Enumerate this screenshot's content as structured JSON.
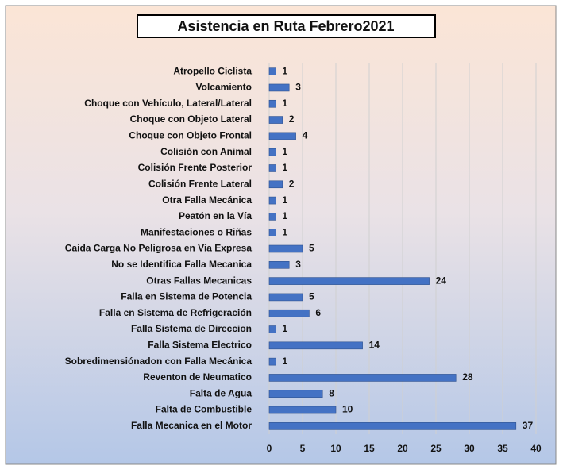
{
  "chart_data": {
    "type": "bar",
    "orientation": "horizontal",
    "title": "Asistencia en Ruta Febrero2021",
    "categories": [
      "Atropello Ciclista",
      "Volcamiento",
      "Choque con Vehículo, Lateral/Lateral",
      "Choque con Objeto Lateral",
      "Choque con Objeto Frontal",
      "Colisión con Animal",
      "Colisión Frente Posterior",
      "Colisión Frente Lateral",
      "Otra Falla Mecánica",
      "Peatón en la Vía",
      "Manifestaciones o Riñas",
      "Caida Carga No Peligrosa en Via Expresa",
      "No se Identifica Falla Mecanica",
      "Otras Fallas Mecanicas",
      "Falla en Sistema de Potencia",
      "Falla en Sistema de Refrigeración",
      "Falla Sistema de Direccion",
      "Falla Sistema Electrico",
      "Sobredimensiónadon con Falla Mecánica",
      "Reventon de Neumatico",
      "Falta de Agua",
      "Falta de Combustible",
      "Falla Mecanica en el Motor"
    ],
    "values": [
      1,
      3,
      1,
      2,
      4,
      1,
      1,
      2,
      1,
      1,
      1,
      5,
      3,
      24,
      5,
      6,
      1,
      14,
      1,
      28,
      8,
      10,
      37
    ],
    "color": "#4472c4",
    "xlim": [
      0,
      40
    ],
    "xticks": [
      0,
      5,
      10,
      15,
      20,
      25,
      30,
      35,
      40
    ],
    "grid": true
  }
}
